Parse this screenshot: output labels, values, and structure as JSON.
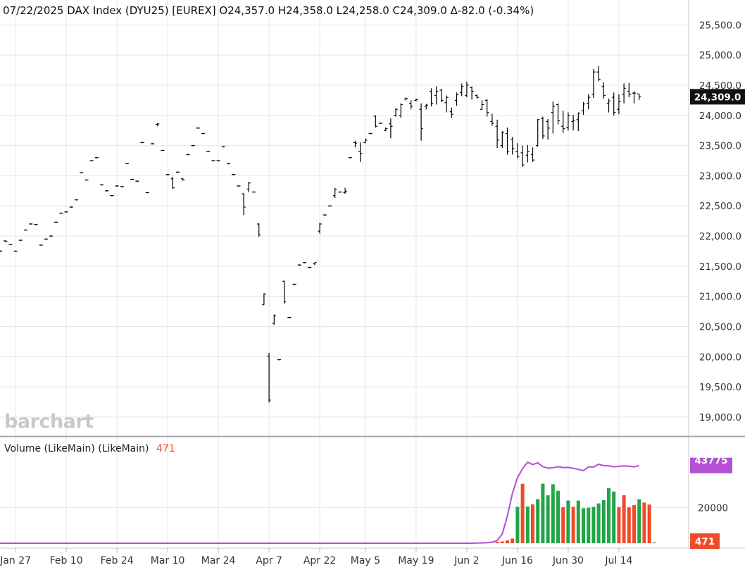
{
  "header": {
    "text": "07/22/2025 DAX Index (DYU25) [EUREX] O24,357.0 H24,358.0 L24,258.0 C24,309.0 Δ-82.0 (-0.34%)"
  },
  "watermark": "barchart",
  "volume_panel": {
    "label": "Volume (LikeMain)  (LikeMain)",
    "value": "471"
  },
  "colors": {
    "up": "#22a447",
    "down": "#ee4b2b",
    "oi_line": "#b44fd6",
    "last_badge": "#111111",
    "oi_badge": "#b44fd6",
    "vol_badge": "#ee4b2b"
  },
  "chart_data": [
    {
      "type": "ohlc",
      "title": "07/22/2025 DAX Index (DYU25) [EUREX] O24,357.0 H24,358.0 L24,258.0 C24,309.0 Δ-82.0 (-0.34%)",
      "ylim": [
        18800,
        25750
      ],
      "yticks": [
        "19,000.0",
        "19,500.0",
        "20,000.0",
        "20,500.0",
        "21,000.0",
        "21,500.0",
        "22,000.0",
        "22,500.0",
        "23,000.0",
        "23,500.0",
        "24,000.0",
        "24,500.0",
        "25,000.0",
        "25,500.0"
      ],
      "ytick_values": [
        19000,
        19500,
        20000,
        20500,
        21000,
        21500,
        22000,
        22500,
        23000,
        23500,
        24000,
        24500,
        25000,
        25500
      ],
      "xticks": [
        "Jan 27",
        "Feb 10",
        "Feb 24",
        "Mar 10",
        "Mar 24",
        "Apr 7",
        "Apr 22",
        "May 5",
        "May 19",
        "Jun 2",
        "Jun 16",
        "Jun 30",
        "Jul 14"
      ],
      "xtick_index": [
        3,
        13,
        23,
        33,
        43,
        53,
        63,
        72,
        82,
        92,
        102,
        112,
        122
      ],
      "last_price": "24,309.0",
      "grid": true,
      "bars": [
        [
          21750,
          21760,
          21740,
          21750
        ],
        [
          21920,
          21930,
          21905,
          21910
        ],
        [
          21860,
          21870,
          21850,
          21860
        ],
        [
          21750,
          21760,
          21740,
          21750
        ],
        [
          21930,
          21940,
          21920,
          21930
        ],
        [
          22100,
          22110,
          22090,
          22100
        ],
        [
          22200,
          22210,
          22190,
          22200
        ],
        [
          22190,
          22200,
          22180,
          22190
        ],
        [
          21850,
          21860,
          21840,
          21850
        ],
        [
          21950,
          21960,
          21940,
          21950
        ],
        [
          22000,
          22010,
          21990,
          22000
        ],
        [
          22230,
          22240,
          22220,
          22230
        ],
        [
          22380,
          22390,
          22370,
          22380
        ],
        [
          22400,
          22410,
          22390,
          22400
        ],
        [
          22480,
          22490,
          22470,
          22480
        ],
        [
          22600,
          22610,
          22590,
          22600
        ],
        [
          23050,
          23060,
          23040,
          23050
        ],
        [
          22930,
          22940,
          22920,
          22930
        ],
        [
          23250,
          23260,
          23240,
          23250
        ],
        [
          23300,
          23310,
          23290,
          23300
        ],
        [
          22850,
          22860,
          22840,
          22850
        ],
        [
          22750,
          22760,
          22740,
          22750
        ],
        [
          22670,
          22680,
          22660,
          22670
        ],
        [
          22830,
          22840,
          22820,
          22830
        ],
        [
          22820,
          22830,
          22810,
          22820
        ],
        [
          23200,
          23210,
          23190,
          23200
        ],
        [
          22940,
          22950,
          22930,
          22940
        ],
        [
          22910,
          22920,
          22900,
          22910
        ],
        [
          23550,
          23560,
          23540,
          23550
        ],
        [
          22720,
          22730,
          22710,
          22720
        ],
        [
          23530,
          23540,
          23520,
          23530
        ],
        [
          23850,
          23870,
          23820,
          23860
        ],
        [
          23420,
          23430,
          23410,
          23420
        ],
        [
          23020,
          23030,
          23010,
          23020
        ],
        [
          22950,
          22980,
          22780,
          22800
        ],
        [
          23060,
          23070,
          23050,
          23060
        ],
        [
          22950,
          22960,
          22920,
          22930
        ],
        [
          23350,
          23360,
          23340,
          23350
        ],
        [
          23500,
          23510,
          23490,
          23500
        ],
        [
          23790,
          23800,
          23780,
          23790
        ],
        [
          23700,
          23710,
          23690,
          23700
        ],
        [
          23400,
          23410,
          23390,
          23400
        ],
        [
          23250,
          23260,
          23240,
          23250
        ],
        [
          23250,
          23260,
          23240,
          23250
        ],
        [
          23480,
          23490,
          23470,
          23480
        ],
        [
          23200,
          23210,
          23190,
          23200
        ],
        [
          23020,
          23030,
          23010,
          23020
        ],
        [
          22830,
          22840,
          22820,
          22830
        ],
        [
          22700,
          22710,
          22350,
          22480
        ],
        [
          22780,
          22900,
          22730,
          22880
        ],
        [
          22730,
          22740,
          22720,
          22730
        ],
        [
          22200,
          22210,
          21990,
          22020
        ],
        [
          20860,
          21050,
          20860,
          21040
        ],
        [
          20010,
          20060,
          19240,
          19280
        ],
        [
          20550,
          20700,
          20530,
          20680
        ],
        [
          19950,
          19960,
          19940,
          19950
        ],
        [
          21250,
          21260,
          20880,
          20910
        ],
        [
          20650,
          20660,
          20640,
          20650
        ],
        [
          21200,
          21210,
          21190,
          21200
        ],
        [
          21520,
          21530,
          21510,
          21520
        ],
        [
          21560,
          21570,
          21550,
          21560
        ],
        [
          21480,
          21490,
          21470,
          21480
        ],
        [
          21540,
          21560,
          21520,
          21560
        ],
        [
          22080,
          22220,
          22040,
          22200
        ],
        [
          22350,
          22360,
          22340,
          22350
        ],
        [
          22500,
          22510,
          22490,
          22500
        ],
        [
          22670,
          22800,
          22630,
          22770
        ],
        [
          22730,
          22740,
          22720,
          22730
        ],
        [
          22720,
          22800,
          22700,
          22740
        ],
        [
          23300,
          23310,
          23290,
          23300
        ],
        [
          23550,
          23580,
          23470,
          23540
        ],
        [
          23400,
          23550,
          23230,
          23370
        ],
        [
          23550,
          23620,
          23540,
          23590
        ],
        [
          23700,
          23710,
          23690,
          23700
        ],
        [
          23990,
          24000,
          23800,
          23820
        ],
        [
          23870,
          23880,
          23860,
          23870
        ],
        [
          23750,
          23800,
          23740,
          23780
        ],
        [
          23860,
          23950,
          23620,
          23820
        ],
        [
          24000,
          24120,
          23980,
          24100
        ],
        [
          24000,
          24200,
          23960,
          24180
        ],
        [
          24270,
          24300,
          24250,
          24280
        ],
        [
          24200,
          24250,
          24100,
          24150
        ],
        [
          24250,
          24280,
          24230,
          24260
        ],
        [
          24100,
          24200,
          23580,
          23780
        ],
        [
          24150,
          24190,
          24100,
          24170
        ],
        [
          24400,
          24450,
          24150,
          24200
        ],
        [
          24330,
          24480,
          24180,
          24400
        ],
        [
          24420,
          24440,
          24220,
          24250
        ],
        [
          24210,
          24330,
          24050,
          24300
        ],
        [
          24060,
          24130,
          23960,
          24020
        ],
        [
          24250,
          24380,
          24160,
          24350
        ],
        [
          24380,
          24530,
          24320,
          24480
        ],
        [
          24330,
          24560,
          24300,
          24500
        ],
        [
          24460,
          24480,
          24260,
          24400
        ],
        [
          24330,
          24350,
          24280,
          24300
        ],
        [
          24100,
          24250,
          24090,
          24180
        ],
        [
          24250,
          24270,
          23980,
          24050
        ],
        [
          23900,
          24030,
          23830,
          23870
        ],
        [
          23820,
          23930,
          23460,
          23590
        ],
        [
          23500,
          23740,
          23460,
          23720
        ],
        [
          23700,
          23800,
          23350,
          23400
        ],
        [
          23600,
          23640,
          23350,
          23450
        ],
        [
          23400,
          23540,
          23290,
          23320
        ],
        [
          23380,
          23500,
          23150,
          23180
        ],
        [
          23340,
          23510,
          23220,
          23400
        ],
        [
          23350,
          23470,
          23230,
          23260
        ],
        [
          23500,
          23940,
          23480,
          23930
        ],
        [
          23950,
          23980,
          23610,
          23660
        ],
        [
          23900,
          23940,
          23600,
          23790
        ],
        [
          24050,
          24230,
          23700,
          24150
        ],
        [
          24180,
          24200,
          23850,
          23910
        ],
        [
          23820,
          24080,
          23710,
          23780
        ],
        [
          23800,
          24050,
          23750,
          24000
        ],
        [
          23900,
          24010,
          23750,
          23920
        ],
        [
          23930,
          24050,
          23740,
          24040
        ],
        [
          24080,
          24220,
          24010,
          24190
        ],
        [
          24200,
          24350,
          24100,
          24300
        ],
        [
          24350,
          24770,
          24290,
          24720
        ],
        [
          24720,
          24820,
          24570,
          24600
        ],
        [
          24480,
          24550,
          24280,
          24330
        ],
        [
          24200,
          24280,
          24050,
          24240
        ],
        [
          24300,
          24380,
          24000,
          24050
        ],
        [
          24100,
          24350,
          24020,
          24230
        ],
        [
          24350,
          24530,
          24200,
          24450
        ],
        [
          24400,
          24540,
          24300,
          24350
        ],
        [
          24370,
          24400,
          24200,
          24370
        ],
        [
          24357,
          24358,
          24258,
          24309
        ]
      ]
    },
    {
      "type": "bar",
      "title": "Volume (LikeMain)  (LikeMain) 471",
      "ylim": [
        0,
        50000
      ],
      "yticks": [
        "20000"
      ],
      "ytick_values": [
        20000
      ],
      "oi_last": "43775",
      "vol_last": "471",
      "series": [
        {
          "start_index": 98,
          "values": [
            800,
            1000,
            1600,
            2600,
            20500,
            33500,
            20700,
            21900,
            24800,
            33500,
            27000,
            33200,
            29500,
            20300,
            24000,
            20500,
            24000,
            19700,
            20000,
            20500,
            22400,
            24300,
            31000,
            29100,
            20300,
            27000,
            20200,
            21500,
            24800,
            22900,
            21800,
            471
          ],
          "up": [
            false,
            false,
            false,
            false,
            true,
            false,
            true,
            false,
            true,
            true,
            true,
            true,
            true,
            false,
            true,
            false,
            true,
            true,
            true,
            true,
            true,
            true,
            true,
            true,
            false,
            false,
            false,
            false,
            true,
            false,
            false,
            true
          ]
        },
        {
          "oi_start_index": 92,
          "oi_values": [
            0,
            0,
            80,
            160,
            320,
            600,
            1500,
            5200,
            15300,
            28000,
            37000,
            42000,
            45700,
            44300,
            45300,
            43100,
            42300,
            42500,
            43100,
            42600,
            42700,
            42200,
            41600,
            40900,
            43000,
            42900,
            44500,
            43700,
            43600,
            43000,
            43300,
            43500,
            43400,
            43000,
            43775
          ]
        }
      ]
    }
  ]
}
